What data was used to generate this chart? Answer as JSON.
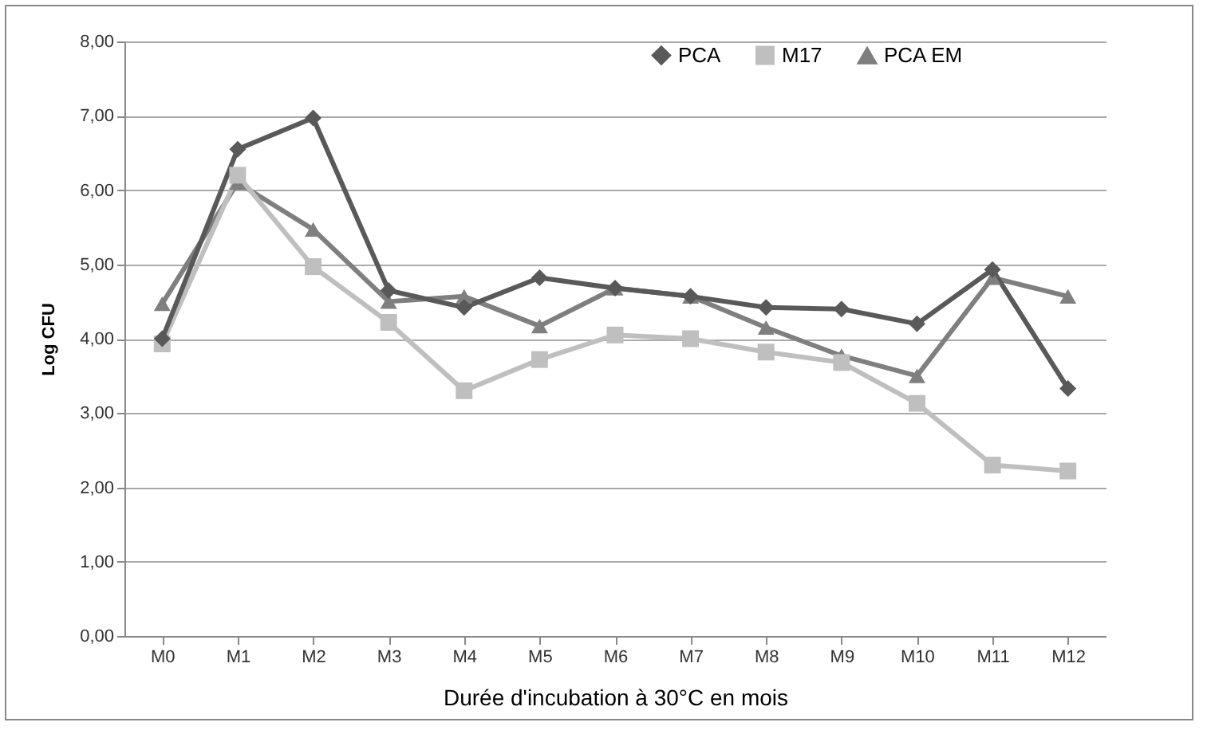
{
  "chart_data": {
    "type": "line",
    "xlabel": "Durée d'incubation à 30°C en mois",
    "ylabel": "Log CFU",
    "categories": [
      "M0",
      "M1",
      "M2",
      "M3",
      "M4",
      "M5",
      "M6",
      "M7",
      "M8",
      "M9",
      "M10",
      "M11",
      "M12"
    ],
    "series": [
      {
        "name": "PCA",
        "color": "#595959",
        "marker": "diamond",
        "values": [
          4.0,
          6.55,
          6.97,
          4.65,
          4.42,
          4.82,
          4.68,
          4.57,
          4.42,
          4.4,
          4.2,
          4.93,
          3.33
        ]
      },
      {
        "name": "M17",
        "color": "#bfbfbf",
        "marker": "square",
        "values": [
          3.93,
          6.2,
          4.97,
          4.22,
          3.3,
          3.72,
          4.05,
          4.0,
          3.82,
          3.68,
          3.13,
          2.3,
          2.22
        ]
      },
      {
        "name": "PCA EM",
        "color": "#7f7f7f",
        "marker": "triangle",
        "values": [
          4.47,
          6.1,
          5.47,
          4.5,
          4.57,
          4.17,
          4.68,
          4.57,
          4.15,
          3.77,
          3.5,
          4.82,
          4.57
        ]
      }
    ],
    "ylim": [
      0,
      8
    ],
    "yticks": [
      {
        "value": 0,
        "label": "0,00"
      },
      {
        "value": 1,
        "label": "1,00"
      },
      {
        "value": 2,
        "label": "2,00"
      },
      {
        "value": 3,
        "label": "3,00"
      },
      {
        "value": 4,
        "label": "4,00"
      },
      {
        "value": 5,
        "label": "5,00"
      },
      {
        "value": 6,
        "label": "6,00"
      },
      {
        "value": 7,
        "label": "7,00"
      },
      {
        "value": 8,
        "label": "8,00"
      }
    ],
    "grid": "y",
    "legend": "top right",
    "line_style": "solid"
  }
}
